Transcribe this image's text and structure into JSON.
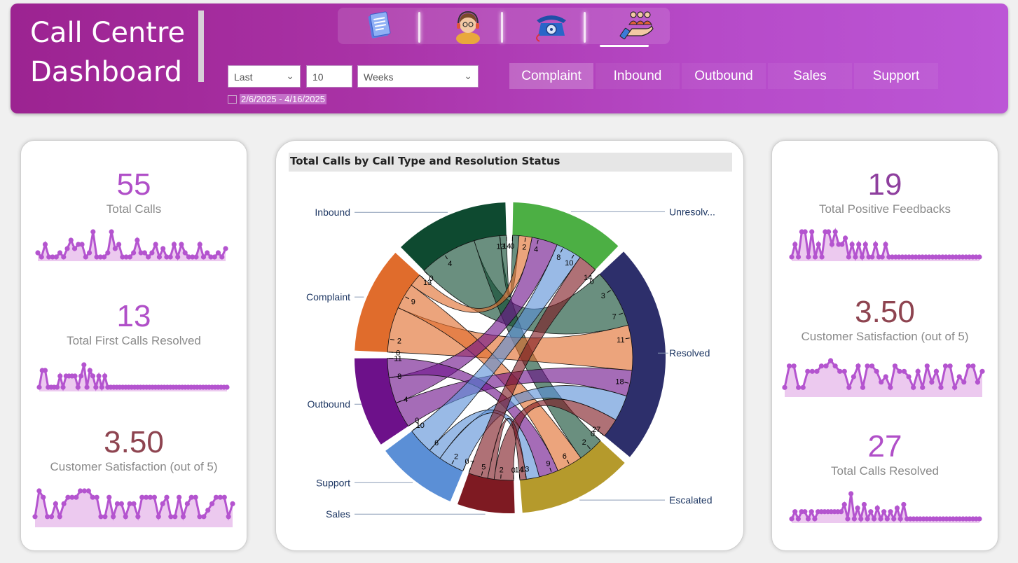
{
  "header": {
    "title_line1": "Call Centre",
    "title_line2": "Dashboard",
    "nav_icons": [
      {
        "name": "report-document-icon"
      },
      {
        "name": "agent-headset-icon"
      },
      {
        "name": "telephone-icon"
      },
      {
        "name": "team-hand-icon",
        "active": true
      }
    ],
    "filter": {
      "period_mode": "Last",
      "period_count": "10",
      "period_unit": "Weeks",
      "date_range": "2/6/2025 - 4/16/2025"
    },
    "call_type_tabs": [
      "Complaint",
      "Inbound",
      "Outbound",
      "Sales",
      "Support"
    ]
  },
  "left_panel": {
    "kpis": [
      {
        "value": "55",
        "label": "Total Calls",
        "color": "#b04fc8",
        "spark": [
          1,
          0,
          3,
          0,
          0,
          0,
          1,
          0,
          2,
          4,
          2,
          3,
          3,
          0,
          1,
          6,
          0,
          0,
          0,
          1,
          6,
          2,
          3,
          0,
          0,
          0,
          1,
          4,
          1,
          1,
          0,
          1,
          3,
          0,
          2,
          0,
          0,
          3,
          0,
          3,
          1,
          0,
          0,
          0,
          3,
          0,
          1,
          0,
          0,
          1,
          0,
          2
        ]
      },
      {
        "value": "13",
        "label": "Total First Calls Resolved",
        "color": "#b04fc8",
        "spark": [
          0,
          3,
          3,
          0,
          0,
          0,
          0,
          2,
          0,
          2,
          2,
          2,
          2,
          0,
          2,
          4,
          0,
          3,
          2,
          0,
          2,
          0,
          2,
          0,
          0,
          0,
          0,
          0,
          0,
          0,
          0,
          0,
          0,
          0,
          0,
          0,
          0,
          0,
          0,
          0,
          0,
          0,
          0,
          0,
          0,
          0,
          0,
          0,
          0,
          0,
          0,
          0,
          0,
          0,
          0,
          0,
          0,
          0,
          0,
          0,
          0,
          0,
          0,
          0
        ]
      },
      {
        "value": "3.50",
        "label": "Customer Satisfaction (out of 5)",
        "color": "#8e4450",
        "spark": [
          1,
          5,
          4,
          1,
          1,
          3,
          1,
          3,
          4,
          4,
          4,
          5,
          5,
          5,
          4,
          4,
          1,
          1,
          4,
          1,
          3,
          3,
          1,
          3,
          3,
          1,
          4,
          4,
          4,
          4,
          1,
          3,
          4,
          1,
          1,
          4,
          1,
          3,
          4,
          4,
          1,
          1,
          2,
          3,
          4,
          4,
          4,
          1,
          3
        ]
      }
    ]
  },
  "chart": {
    "title": "Total Calls by Call Type and Resolution Status"
  },
  "chart_data": {
    "type": "chord",
    "title": "Total Calls by Call Type and Resolution Status",
    "groups_call_type": [
      "Inbound",
      "Complaint",
      "Outbound",
      "Support",
      "Sales"
    ],
    "groups_resolution": [
      "Unresolv...",
      "Resolved",
      "Escalated"
    ],
    "group_totals": {
      "Inbound": 14,
      "Complaint": 13,
      "Outbound": 11,
      "Support": 10,
      "Sales": 7,
      "Unresolv...": 14,
      "Resolved": 27,
      "Escalated": 14
    },
    "flows": [
      {
        "from": "Inbound",
        "to": "Resolved",
        "value": 9
      },
      {
        "from": "Inbound",
        "to": "Escalated",
        "value": 4
      },
      {
        "from": "Inbound",
        "to": "Unresolv...",
        "value": 1
      },
      {
        "from": "Complaint",
        "to": "Resolved",
        "value": 7
      },
      {
        "from": "Complaint",
        "to": "Escalated",
        "value": 4
      },
      {
        "from": "Complaint",
        "to": "Unresolv...",
        "value": 2
      },
      {
        "from": "Outbound",
        "to": "Resolved",
        "value": 4
      },
      {
        "from": "Outbound",
        "to": "Unresolv...",
        "value": 4
      },
      {
        "from": "Outbound",
        "to": "Escalated",
        "value": 3
      },
      {
        "from": "Support",
        "to": "Resolved",
        "value": 4
      },
      {
        "from": "Support",
        "to": "Escalated",
        "value": 2
      },
      {
        "from": "Support",
        "to": "Unresolv...",
        "value": 4
      },
      {
        "from": "Sales",
        "to": "Resolved",
        "value": 3
      },
      {
        "from": "Sales",
        "to": "Escalated",
        "value": 1
      },
      {
        "from": "Sales",
        "to": "Unresolv...",
        "value": 3
      }
    ],
    "colors": {
      "Inbound": "#0e4a30",
      "Complaint": "#e06c2c",
      "Outbound": "#6d118a",
      "Support": "#5b8fd6",
      "Sales": "#7e1a22",
      "Unresolv...": "#4caf44",
      "Resolved": "#2d2f6b",
      "Escalated": "#b59a2c"
    },
    "order": [
      "Unresolv...",
      "Resolved",
      "Escalated",
      "Sales",
      "Support",
      "Outbound",
      "Complaint",
      "Inbound"
    ],
    "ticks": {
      "Unresolv...": [
        0,
        2,
        4,
        8,
        10,
        14
      ],
      "Resolved": [
        0,
        3,
        7,
        11,
        18,
        27
      ],
      "Escalated": [
        0,
        2,
        6,
        9,
        13,
        14
      ],
      "Sales": [
        0,
        2,
        5,
        7
      ],
      "Support": [
        0,
        2,
        6,
        10
      ],
      "Outbound": [
        0,
        4,
        8,
        11
      ],
      "Complaint": [
        0,
        2,
        9,
        13
      ],
      "Inbound": [
        0,
        4,
        13,
        14
      ]
    }
  },
  "right_panel": {
    "kpis": [
      {
        "value": "19",
        "label": "Total Positive Feedbacks",
        "color": "#8e3f9e",
        "spark": [
          0,
          2,
          0,
          4,
          4,
          0,
          4,
          0,
          2,
          0,
          4,
          4,
          2,
          4,
          2,
          2,
          3,
          0,
          2,
          0,
          2,
          0,
          2,
          0,
          0,
          2,
          0,
          0,
          2,
          0,
          0,
          0,
          0,
          0,
          0,
          0,
          0,
          0,
          0,
          0,
          0,
          0,
          0,
          0,
          0,
          0,
          0,
          0,
          0,
          0,
          0,
          0,
          0,
          0,
          0,
          0,
          0
        ]
      },
      {
        "value": "3.50",
        "label": "Customer Satisfaction (out of 5)",
        "color": "#8e4450",
        "spark": [
          1,
          5,
          5,
          1,
          1,
          4,
          4,
          4,
          5,
          5,
          6,
          5,
          4,
          4,
          1,
          3,
          5,
          1,
          5,
          5,
          4,
          2,
          3,
          1,
          5,
          4,
          4,
          3,
          1,
          4,
          1,
          5,
          2,
          4,
          1,
          5,
          5,
          1,
          3,
          2,
          5,
          5,
          2,
          4
        ]
      },
      {
        "value": "27",
        "label": "Total Calls Resolved",
        "color": "#b04fc8",
        "spark": [
          0,
          2,
          0,
          2,
          2,
          0,
          2,
          0,
          2,
          2,
          2,
          2,
          2,
          2,
          2,
          2,
          4,
          0,
          7,
          0,
          3,
          0,
          4,
          0,
          2,
          0,
          3,
          0,
          2,
          0,
          2,
          0,
          3,
          0,
          4,
          0,
          0,
          0,
          0,
          0,
          0,
          0,
          0,
          0,
          0,
          0,
          0,
          0,
          0,
          0,
          0,
          0,
          0,
          0,
          0,
          0,
          0,
          0
        ]
      }
    ]
  }
}
